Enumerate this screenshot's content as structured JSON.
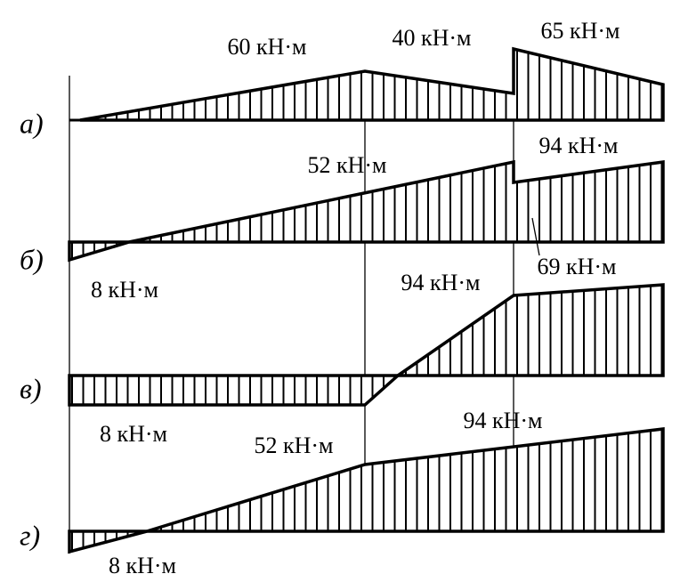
{
  "panels": [
    {
      "label": "а)",
      "annotations": [
        "60 кН·м",
        "40 кН·м",
        "65 кН·м"
      ]
    },
    {
      "label": "б)",
      "annotations": [
        "52 кН·м",
        "94 кН·м",
        "8 кН·м",
        "69 кН·м"
      ]
    },
    {
      "label": "в)",
      "annotations": [
        "94 кН·м",
        "8 кН·м"
      ]
    },
    {
      "label": "г)",
      "annotations": [
        "52 кН·м",
        "94 кН·м",
        "8 кН·м"
      ]
    }
  ]
}
